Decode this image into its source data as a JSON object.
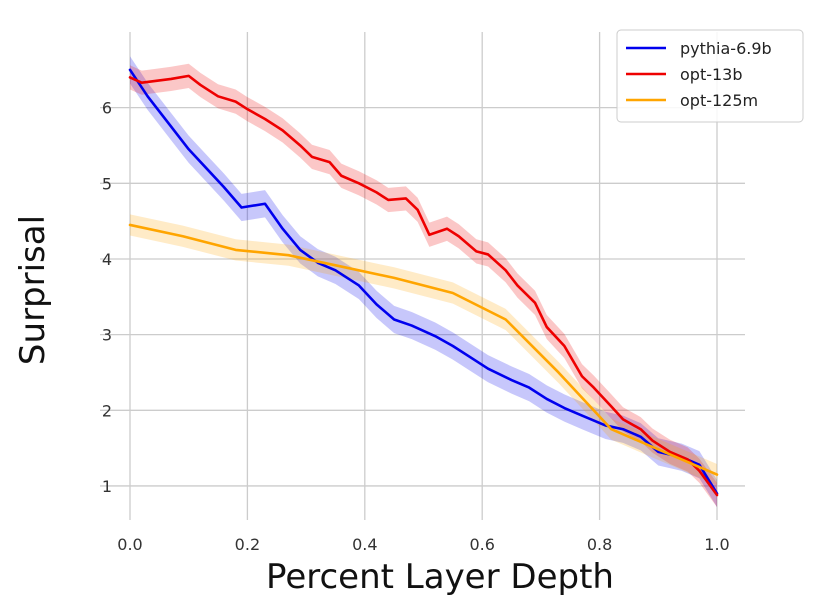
{
  "chart_data": {
    "type": "line",
    "xlabel": "Percent Layer Depth",
    "ylabel": "Surprisal",
    "xlim": [
      0.0,
      1.0
    ],
    "ylim": [
      0.55,
      7.0
    ],
    "x_ticks": [
      "0.0",
      "0.2",
      "0.4",
      "0.6",
      "0.8",
      "1.0"
    ],
    "x_tick_values": [
      0.0,
      0.2,
      0.4,
      0.6,
      0.8,
      1.0
    ],
    "y_ticks": [
      "1",
      "2",
      "3",
      "4",
      "5",
      "6"
    ],
    "y_tick_values": [
      1,
      2,
      3,
      4,
      5,
      6
    ],
    "grid": true,
    "legend_position": "top-right",
    "series": [
      {
        "name": "pythia-6.9b",
        "color": "#0000ee",
        "band": 0.18,
        "x": [
          0.0,
          0.03,
          0.07,
          0.1,
          0.13,
          0.16,
          0.19,
          0.23,
          0.26,
          0.29,
          0.32,
          0.35,
          0.39,
          0.42,
          0.45,
          0.48,
          0.52,
          0.55,
          0.58,
          0.61,
          0.65,
          0.68,
          0.71,
          0.74,
          0.77,
          0.81,
          0.84,
          0.87,
          0.9,
          0.94,
          0.97,
          1.0
        ],
        "y": [
          6.5,
          6.15,
          5.75,
          5.45,
          5.2,
          4.95,
          4.68,
          4.73,
          4.4,
          4.12,
          3.95,
          3.85,
          3.65,
          3.4,
          3.2,
          3.12,
          2.98,
          2.85,
          2.7,
          2.55,
          2.4,
          2.3,
          2.15,
          2.03,
          1.93,
          1.8,
          1.75,
          1.65,
          1.45,
          1.38,
          1.28,
          0.9
        ]
      },
      {
        "name": "opt-13b",
        "color": "#ee0000",
        "band": 0.16,
        "x": [
          0.0,
          0.02,
          0.04,
          0.07,
          0.1,
          0.12,
          0.15,
          0.18,
          0.2,
          0.23,
          0.26,
          0.29,
          0.31,
          0.34,
          0.36,
          0.39,
          0.42,
          0.44,
          0.47,
          0.49,
          0.51,
          0.54,
          0.56,
          0.59,
          0.61,
          0.64,
          0.66,
          0.69,
          0.71,
          0.74,
          0.77,
          0.79,
          0.82,
          0.84,
          0.87,
          0.89,
          0.92,
          0.95,
          0.97,
          1.0
        ],
        "y": [
          6.4,
          6.33,
          6.35,
          6.38,
          6.42,
          6.3,
          6.15,
          6.08,
          5.98,
          5.85,
          5.7,
          5.5,
          5.35,
          5.28,
          5.1,
          5.0,
          4.88,
          4.78,
          4.8,
          4.65,
          4.32,
          4.4,
          4.3,
          4.1,
          4.06,
          3.85,
          3.65,
          3.42,
          3.1,
          2.85,
          2.45,
          2.3,
          2.05,
          1.88,
          1.75,
          1.6,
          1.45,
          1.35,
          1.2,
          0.88
        ]
      },
      {
        "name": "opt-125m",
        "color": "#ffa500",
        "band": 0.14,
        "x": [
          0.0,
          0.09,
          0.18,
          0.27,
          0.36,
          0.45,
          0.55,
          0.64,
          0.73,
          0.82,
          0.91,
          1.0
        ],
        "y": [
          4.45,
          4.3,
          4.12,
          4.05,
          3.9,
          3.75,
          3.55,
          3.2,
          2.5,
          1.75,
          1.45,
          1.15
        ]
      }
    ]
  }
}
